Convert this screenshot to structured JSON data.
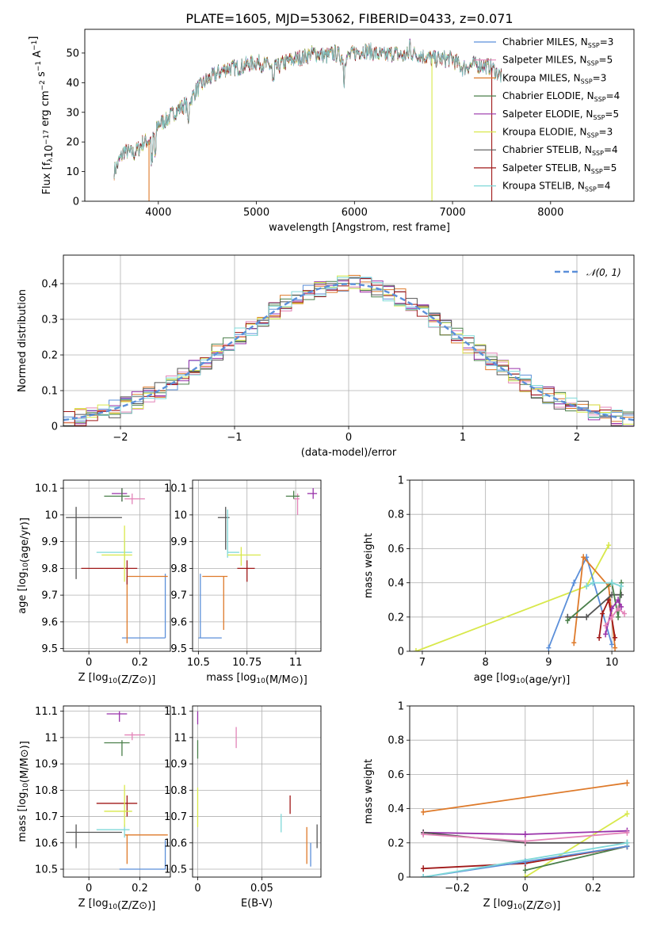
{
  "title": "PLATE=1605, MJD=53062, FIBERID=0433, z=0.071",
  "colors": {
    "Chabrier MILES": "#5b8fd9",
    "Salpeter MILES": "#e384b8",
    "Kroupa MILES": "#de7a2a",
    "Chabrier ELODIE": "#4a7f4a",
    "Salpeter ELODIE": "#9933aa",
    "Kroupa ELODIE": "#d8e84a",
    "Chabrier STELIB": "#555555",
    "Salpeter STELIB": "#a01818",
    "Kroupa STELIB": "#7fd8d8"
  },
  "legend_spectrum": [
    {
      "main": "Chabrier MILES, N",
      "sub": "SSP",
      "tail": "=3",
      "key": "Chabrier MILES"
    },
    {
      "main": "Salpeter MILES, N",
      "sub": "SSP",
      "tail": "=5",
      "key": "Salpeter MILES"
    },
    {
      "main": "Kroupa MILES, N",
      "sub": "SSP",
      "tail": "=3",
      "key": "Kroupa MILES"
    },
    {
      "main": "Chabrier ELODIE, N",
      "sub": "SSP",
      "tail": "=4",
      "key": "Chabrier ELODIE"
    },
    {
      "main": "Salpeter ELODIE, N",
      "sub": "SSP",
      "tail": "=5",
      "key": "Salpeter ELODIE"
    },
    {
      "main": "Kroupa ELODIE, N",
      "sub": "SSP",
      "tail": "=3",
      "key": "Kroupa ELODIE"
    },
    {
      "main": "Chabrier STELIB, N",
      "sub": "SSP",
      "tail": "=4",
      "key": "Chabrier STELIB"
    },
    {
      "main": "Salpeter STELIB, N",
      "sub": "SSP",
      "tail": "=5",
      "key": "Salpeter STELIB"
    },
    {
      "main": "Kroupa STELIB, N",
      "sub": "SSP",
      "tail": "=4",
      "key": "Kroupa STELIB"
    }
  ],
  "chart_data": [
    {
      "id": "spectrum",
      "type": "line",
      "xlabel": "wavelength [Angstrom, rest frame]",
      "ylabel": "Flux [f_λ10^-17 erg cm^-2 s^-1 A^-1]",
      "xlim": [
        3250,
        8850
      ],
      "ylim": [
        0,
        58
      ],
      "xticks": [
        4000,
        5000,
        6000,
        7000,
        8000
      ],
      "yticks": [
        0,
        10,
        20,
        30,
        40,
        50
      ],
      "continuum": [
        [
          3550,
          10
        ],
        [
          3650,
          17
        ],
        [
          3750,
          16
        ],
        [
          3850,
          20
        ],
        [
          3950,
          21
        ],
        [
          4000,
          26
        ],
        [
          4100,
          28
        ],
        [
          4200,
          31
        ],
        [
          4300,
          33
        ],
        [
          4400,
          38
        ],
        [
          4500,
          41
        ],
        [
          4600,
          43
        ],
        [
          4700,
          45
        ],
        [
          4800,
          45
        ],
        [
          4900,
          46
        ],
        [
          5000,
          47
        ],
        [
          5100,
          46
        ],
        [
          5200,
          45
        ],
        [
          5300,
          47
        ],
        [
          5400,
          48
        ],
        [
          5500,
          49
        ],
        [
          5600,
          50
        ],
        [
          5700,
          49
        ],
        [
          5800,
          50
        ],
        [
          5900,
          48
        ],
        [
          6000,
          50
        ],
        [
          6100,
          51
        ],
        [
          6200,
          50
        ],
        [
          6300,
          49
        ],
        [
          6400,
          50
        ],
        [
          6500,
          49
        ],
        [
          6600,
          50
        ],
        [
          6700,
          49
        ],
        [
          6800,
          48
        ],
        [
          6900,
          48
        ],
        [
          7000,
          48
        ],
        [
          7100,
          45
        ],
        [
          7200,
          46
        ],
        [
          7300,
          46
        ],
        [
          7400,
          45
        ],
        [
          7500,
          42
        ]
      ],
      "drop_lines": [
        {
          "x": 3905,
          "key": "Kroupa MILES"
        },
        {
          "x": 6790,
          "key": "Kroupa ELODIE"
        },
        {
          "x": 7400,
          "key": "Salpeter STELIB"
        }
      ]
    },
    {
      "id": "residual_hist",
      "type": "histogram",
      "xlabel": "(data-model)/error",
      "ylabel": "Normed distribution",
      "xlim": [
        -2.5,
        2.5
      ],
      "ylim": [
        0,
        0.48
      ],
      "xticks": [
        -2,
        -1,
        0,
        1,
        2
      ],
      "yticks": [
        0.0,
        0.1,
        0.2,
        0.3,
        0.4
      ],
      "legend": "𝒩(0, 1)",
      "bin_width": 0.1
    },
    {
      "id": "age_vs_Z",
      "type": "scatter",
      "xlabel": "Z [log10(Z/Z⊙)]",
      "ylabel": "age [log10(age/yr)]",
      "xlim": [
        -0.1,
        0.32
      ],
      "ylim": [
        9.49,
        10.13
      ],
      "xticks": [
        0.0,
        0.2
      ],
      "yticks": [
        9.5,
        9.6,
        9.7,
        9.8,
        9.9,
        10.0,
        10.1
      ],
      "points": [
        {
          "key": "Chabrier MILES",
          "x": 0.3,
          "y": 9.54,
          "xlo": 0.13,
          "xhi": 0.3,
          "ylo": 9.54,
          "yhi": 9.78
        },
        {
          "key": "Kroupa MILES",
          "x": 0.15,
          "y": 9.77,
          "xlo": 0.15,
          "xhi": 0.31,
          "ylo": 9.52,
          "yhi": 9.77
        },
        {
          "key": "Salpeter STELIB",
          "x": 0.15,
          "y": 9.8,
          "xlo": -0.03,
          "xhi": 0.19,
          "ylo": 9.74,
          "yhi": 9.83
        },
        {
          "key": "Chabrier STELIB",
          "x": -0.05,
          "y": 9.99,
          "xlo": -0.09,
          "xhi": 0.13,
          "ylo": 9.76,
          "yhi": 10.03
        },
        {
          "key": "Kroupa STELIB",
          "x": 0.14,
          "y": 9.86,
          "xlo": 0.03,
          "xhi": 0.17,
          "ylo": 9.83,
          "yhi": 9.9
        },
        {
          "key": "Kroupa ELODIE",
          "x": 0.14,
          "y": 9.85,
          "xlo": 0.05,
          "xhi": 0.17,
          "ylo": 9.75,
          "yhi": 9.96
        },
        {
          "key": "Salpeter ELODIE",
          "x": 0.13,
          "y": 10.08,
          "xlo": 0.09,
          "xhi": 0.15,
          "ylo": 10.05,
          "yhi": 10.1
        },
        {
          "key": "Salpeter MILES",
          "x": 0.17,
          "y": 10.06,
          "xlo": 0.14,
          "xhi": 0.22,
          "ylo": 10.04,
          "yhi": 10.08
        },
        {
          "key": "Chabrier ELODIE",
          "x": 0.13,
          "y": 10.07,
          "xlo": 0.06,
          "xhi": 0.16,
          "ylo": 10.05,
          "yhi": 10.1
        }
      ]
    },
    {
      "id": "age_vs_mass",
      "type": "scatter",
      "xlabel": "mass [log10(M/M⊙)]",
      "ylabel": "",
      "xlim": [
        10.47,
        11.13
      ],
      "ylim": [
        9.49,
        10.13
      ],
      "xticks": [
        10.5,
        10.75,
        11.0
      ],
      "yticks": [
        9.5,
        9.6,
        9.7,
        9.8,
        9.9,
        10.0,
        10.1
      ],
      "points": [
        {
          "key": "Chabrier MILES",
          "x": 10.51,
          "y": 9.54,
          "xlo": 10.5,
          "xhi": 10.62,
          "ylo": 9.54,
          "yhi": 9.78
        },
        {
          "key": "Kroupa MILES",
          "x": 10.63,
          "y": 9.77,
          "xlo": 10.52,
          "xhi": 10.65,
          "ylo": 9.57,
          "yhi": 9.77
        },
        {
          "key": "Salpeter STELIB",
          "x": 10.75,
          "y": 9.8,
          "xlo": 10.7,
          "xhi": 10.79,
          "ylo": 9.75,
          "yhi": 9.83
        },
        {
          "key": "Chabrier STELIB",
          "x": 10.64,
          "y": 9.99,
          "xlo": 10.6,
          "xhi": 10.66,
          "ylo": 9.87,
          "yhi": 10.03
        },
        {
          "key": "Kroupa STELIB",
          "x": 10.65,
          "y": 9.86,
          "xlo": 10.65,
          "xhi": 10.71,
          "ylo": 9.84,
          "yhi": 10.02
        },
        {
          "key": "Kroupa ELODIE",
          "x": 10.72,
          "y": 9.85,
          "xlo": 10.65,
          "xhi": 10.82,
          "ylo": 9.81,
          "yhi": 9.88
        },
        {
          "key": "Salpeter ELODIE",
          "x": 11.09,
          "y": 10.08,
          "xlo": 11.06,
          "xhi": 11.11,
          "ylo": 10.06,
          "yhi": 10.1
        },
        {
          "key": "Salpeter MILES",
          "x": 11.01,
          "y": 10.06,
          "xlo": 10.99,
          "xhi": 11.02,
          "ylo": 10.0,
          "yhi": 10.08
        },
        {
          "key": "Chabrier ELODIE",
          "x": 10.99,
          "y": 10.07,
          "xlo": 10.95,
          "xhi": 11.02,
          "ylo": 10.06,
          "yhi": 10.09
        }
      ]
    },
    {
      "id": "mass_weight_vs_age",
      "type": "line",
      "xlabel": "age [log10(age/yr)]",
      "ylabel": "mass weight",
      "xlim": [
        6.8,
        10.35
      ],
      "ylim": [
        0,
        1.0
      ],
      "xticks": [
        7,
        8,
        9,
        10
      ],
      "yticks": [
        0.0,
        0.2,
        0.4,
        0.6,
        0.8,
        1.0
      ],
      "series": [
        {
          "key": "Kroupa ELODIE",
          "x": [
            6.9,
            9.6,
            9.95
          ],
          "y": [
            0.0,
            0.38,
            0.62
          ]
        },
        {
          "key": "Chabrier MILES",
          "x": [
            9.0,
            9.4,
            9.6,
            10.0
          ],
          "y": [
            0.02,
            0.4,
            0.55,
            0.04
          ]
        },
        {
          "key": "Kroupa MILES",
          "x": [
            9.4,
            9.55,
            9.95,
            10.05
          ],
          "y": [
            0.05,
            0.55,
            0.38,
            0.02
          ]
        },
        {
          "key": "Salpeter STELIB",
          "x": [
            9.8,
            9.85,
            9.95,
            10.05
          ],
          "y": [
            0.08,
            0.22,
            0.3,
            0.08
          ]
        },
        {
          "key": "Chabrier STELIB",
          "x": [
            9.3,
            9.6,
            10.0,
            10.15
          ],
          "y": [
            0.2,
            0.2,
            0.33,
            0.33
          ]
        },
        {
          "key": "Chabrier ELODIE",
          "x": [
            9.3,
            10.0,
            10.1,
            10.15
          ],
          "y": [
            0.18,
            0.4,
            0.2,
            0.4
          ]
        },
        {
          "key": "Salpeter ELODIE",
          "x": [
            9.9,
            10.0,
            10.1,
            10.15
          ],
          "y": [
            0.1,
            0.25,
            0.3,
            0.26
          ]
        },
        {
          "key": "Salpeter MILES",
          "x": [
            9.9,
            10.0,
            10.1,
            10.2
          ],
          "y": [
            0.15,
            0.2,
            0.25,
            0.22
          ]
        },
        {
          "key": "Kroupa STELIB",
          "x": [
            9.6,
            9.7,
            10.0,
            10.15
          ],
          "y": [
            0.38,
            0.4,
            0.4,
            0.38
          ]
        }
      ]
    },
    {
      "id": "mass_vs_Z",
      "type": "scatter",
      "xlabel": "Z [log10(Z/Z⊙)]",
      "ylabel": "mass [log10(M/M⊙)]",
      "xlim": [
        -0.1,
        0.32
      ],
      "ylim": [
        10.47,
        11.12
      ],
      "xticks": [
        0.0,
        0.2
      ],
      "yticks": [
        10.5,
        10.6,
        10.7,
        10.8,
        10.9,
        11.0,
        11.1
      ],
      "points": [
        {
          "key": "Chabrier MILES",
          "x": 0.3,
          "y": 10.5,
          "xlo": 0.12,
          "xhi": 0.3,
          "ylo": 10.5,
          "yhi": 10.61
        },
        {
          "key": "Kroupa MILES",
          "x": 0.15,
          "y": 10.63,
          "xlo": 0.14,
          "xhi": 0.31,
          "ylo": 10.52,
          "yhi": 10.63
        },
        {
          "key": "Chabrier STELIB",
          "x": -0.05,
          "y": 10.64,
          "xlo": -0.09,
          "xhi": 0.13,
          "ylo": 10.58,
          "yhi": 10.67
        },
        {
          "key": "Kroupa STELIB",
          "x": 0.14,
          "y": 10.65,
          "xlo": 0.03,
          "xhi": 0.16,
          "ylo": 10.62,
          "yhi": 10.67
        },
        {
          "key": "Salpeter STELIB",
          "x": 0.15,
          "y": 10.75,
          "xlo": 0.03,
          "xhi": 0.19,
          "ylo": 10.7,
          "yhi": 10.78
        },
        {
          "key": "Kroupa ELODIE",
          "x": 0.14,
          "y": 10.72,
          "xlo": 0.06,
          "xhi": 0.17,
          "ylo": 10.66,
          "yhi": 10.82
        },
        {
          "key": "Chabrier ELODIE",
          "x": 0.13,
          "y": 10.98,
          "xlo": 0.06,
          "xhi": 0.16,
          "ylo": 10.93,
          "yhi": 10.99
        },
        {
          "key": "Salpeter MILES",
          "x": 0.17,
          "y": 11.01,
          "xlo": 0.14,
          "xhi": 0.22,
          "ylo": 10.99,
          "yhi": 11.02
        },
        {
          "key": "Salpeter ELODIE",
          "x": 0.12,
          "y": 11.09,
          "xlo": 0.07,
          "xhi": 0.15,
          "ylo": 11.06,
          "yhi": 11.1
        }
      ]
    },
    {
      "id": "mass_vs_ebv",
      "type": "scatter",
      "xlabel": "E(B-V)",
      "ylabel": "",
      "xlim": [
        -0.004,
        0.096
      ],
      "ylim": [
        10.47,
        11.12
      ],
      "xticks": [
        0.0,
        0.05
      ],
      "yticks": [
        10.5,
        10.6,
        10.7,
        10.8,
        10.9,
        11.0,
        11.1
      ],
      "points": [
        {
          "key": "Chabrier MILES",
          "x": 0.088,
          "y": 10.55,
          "ylo": 10.51,
          "yhi": 10.6
        },
        {
          "key": "Kroupa MILES",
          "x": 0.085,
          "y": 10.61,
          "ylo": 10.52,
          "yhi": 10.66
        },
        {
          "key": "Chabrier STELIB",
          "x": 0.093,
          "y": 10.63,
          "ylo": 10.58,
          "yhi": 10.67
        },
        {
          "key": "Kroupa STELIB",
          "x": 0.065,
          "y": 10.67,
          "ylo": 10.64,
          "yhi": 10.71
        },
        {
          "key": "Salpeter STELIB",
          "x": 0.072,
          "y": 10.75,
          "ylo": 10.71,
          "yhi": 10.78
        },
        {
          "key": "Kroupa ELODIE",
          "x": 0.0,
          "y": 10.75,
          "ylo": 10.66,
          "yhi": 10.81
        },
        {
          "key": "Chabrier ELODIE",
          "x": 0.0,
          "y": 10.97,
          "ylo": 10.92,
          "yhi": 10.99
        },
        {
          "key": "Salpeter MILES",
          "x": 0.03,
          "y": 11.0,
          "ylo": 10.96,
          "yhi": 11.04
        },
        {
          "key": "Salpeter ELODIE",
          "x": 0.0,
          "y": 11.09,
          "ylo": 11.05,
          "yhi": 11.1
        }
      ]
    },
    {
      "id": "mass_weight_vs_Z",
      "type": "line",
      "xlabel": "Z [log10(Z/Z⊙)]",
      "ylabel": "mass weight",
      "xlim": [
        -0.34,
        0.32
      ],
      "ylim": [
        0,
        1.0
      ],
      "xticks": [
        -0.2,
        0.0,
        0.2
      ],
      "yticks": [
        0.0,
        0.2,
        0.4,
        0.6,
        0.8,
        1.0
      ],
      "series": [
        {
          "key": "Kroupa MILES",
          "x": [
            -0.3,
            0.3
          ],
          "y": [
            0.38,
            0.55
          ]
        },
        {
          "key": "Kroupa ELODIE",
          "x": [
            0.0,
            0.3
          ],
          "y": [
            0.0,
            0.37
          ]
        },
        {
          "key": "Salpeter ELODIE",
          "x": [
            -0.3,
            0.0,
            0.3
          ],
          "y": [
            0.26,
            0.25,
            0.27
          ]
        },
        {
          "key": "Chabrier STELIB",
          "x": [
            -0.3,
            0.0,
            0.3
          ],
          "y": [
            0.26,
            0.2,
            0.2
          ]
        },
        {
          "key": "Salpeter MILES",
          "x": [
            -0.3,
            0.0,
            0.3
          ],
          "y": [
            0.25,
            0.21,
            0.26
          ]
        },
        {
          "key": "Chabrier ELODIE",
          "x": [
            0.0,
            0.3
          ],
          "y": [
            0.04,
            0.18
          ]
        },
        {
          "key": "Salpeter STELIB",
          "x": [
            -0.3,
            0.0,
            0.3
          ],
          "y": [
            0.05,
            0.08,
            0.18
          ]
        },
        {
          "key": "Chabrier MILES",
          "x": [
            -0.3,
            0.0,
            0.3
          ],
          "y": [
            0.0,
            0.09,
            0.18
          ]
        },
        {
          "key": "Kroupa STELIB",
          "x": [
            -0.3,
            0.3
          ],
          "y": [
            0.0,
            0.2
          ]
        }
      ]
    }
  ]
}
